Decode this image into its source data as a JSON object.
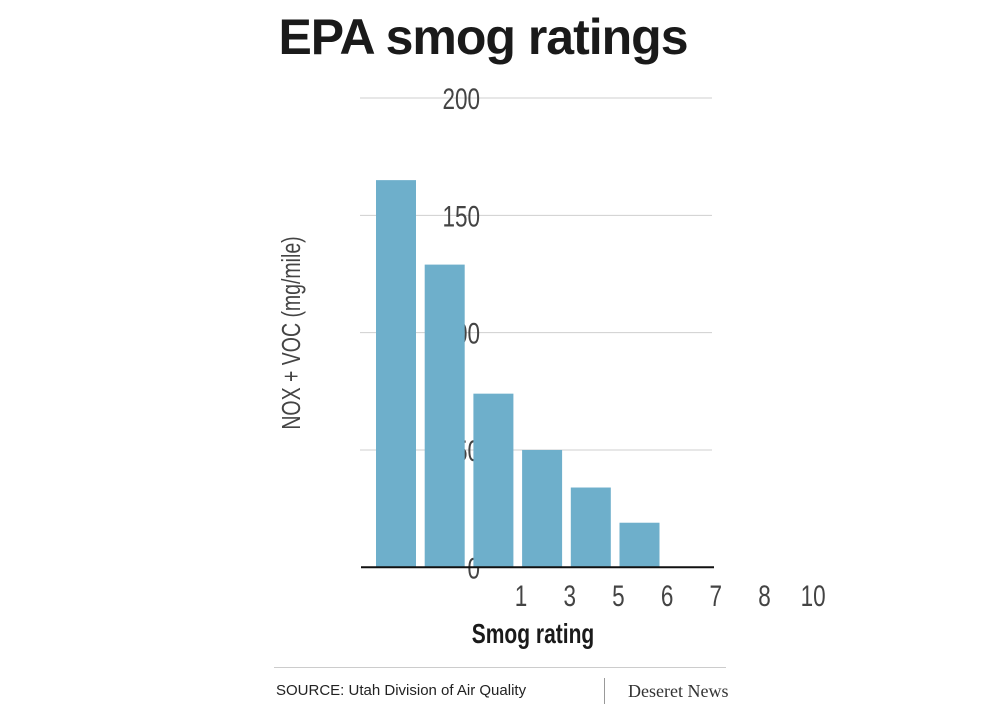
{
  "chart_data": {
    "type": "bar",
    "title": "EPA smog ratings",
    "xlabel": "Smog rating",
    "ylabel": "NOX + VOC (mg/mile)",
    "categories": [
      "1",
      "3",
      "5",
      "6",
      "7",
      "8",
      "10"
    ],
    "values": [
      165,
      129,
      74,
      50,
      34,
      19,
      0
    ],
    "ylim": [
      0,
      200
    ],
    "yticks": [
      "0",
      "50",
      "100",
      "150",
      "200"
    ],
    "grid": true,
    "bar_color": "#6eafcb"
  },
  "footer": {
    "source": "SOURCE: Utah Division of Air Quality",
    "brand": "Deseret News"
  }
}
